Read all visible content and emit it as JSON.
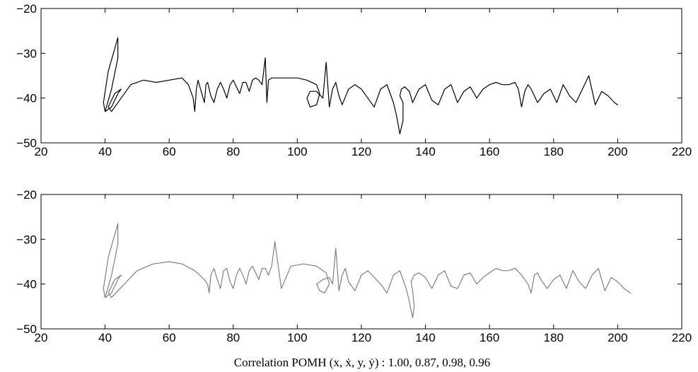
{
  "chart_data": [
    {
      "type": "line",
      "panel": "top",
      "title": "",
      "xlabel": "",
      "ylabel": "",
      "xlim": [
        20,
        220
      ],
      "ylim": [
        -50,
        -20
      ],
      "x_ticks": [
        20,
        40,
        60,
        80,
        100,
        120,
        140,
        160,
        180,
        200,
        220
      ],
      "y_ticks": [
        -50,
        -40,
        -30,
        -20
      ],
      "x_tick_labels": [
        "20",
        "40",
        "60",
        "80",
        "100",
        "120",
        "140",
        "160",
        "180",
        "200",
        "220"
      ],
      "y_tick_labels": [
        "−50",
        "−40",
        "−30",
        "−20"
      ],
      "grid": false,
      "line_color": "#000000",
      "series": [
        {
          "x": [
            40,
            42,
            44,
            44,
            41,
            39.5,
            40,
            42,
            44,
            45,
            43,
            41,
            42,
            45,
            48,
            52,
            56,
            60,
            64,
            66,
            67.5,
            68,
            68.5,
            69,
            70,
            71,
            71.5,
            72,
            73,
            74,
            75,
            76,
            77,
            78,
            79,
            80,
            81,
            82,
            83,
            84,
            85,
            86,
            87,
            88,
            89,
            90,
            90.5,
            91,
            92,
            94,
            97,
            100,
            103,
            106,
            107,
            106,
            104,
            103,
            104,
            106,
            108,
            109,
            110,
            111,
            112,
            113,
            114,
            116,
            118,
            120,
            122,
            124,
            126,
            128,
            130,
            131,
            132,
            133,
            133,
            132,
            132.5,
            133.5,
            135,
            136,
            138,
            140,
            142,
            144,
            146,
            148,
            150,
            152,
            154,
            156,
            158,
            160,
            162,
            164,
            166,
            168,
            169,
            170,
            171,
            172,
            173,
            175,
            177,
            179,
            181,
            183,
            185,
            187,
            189,
            191,
            193,
            195,
            197,
            199,
            200
          ],
          "y": [
            -43,
            -38,
            -31,
            -26.5,
            -34,
            -41,
            -43,
            -42,
            -39,
            -38,
            -39,
            -42,
            -43,
            -40,
            -37,
            -36,
            -36.5,
            -36,
            -35.5,
            -37,
            -40,
            -43,
            -38,
            -36,
            -38.5,
            -41,
            -37,
            -36.5,
            -39.5,
            -41,
            -38,
            -36.5,
            -38,
            -40,
            -37,
            -36,
            -37.5,
            -39,
            -36.5,
            -36.5,
            -38.5,
            -36,
            -35.5,
            -36,
            -37,
            -31,
            -41,
            -36,
            -35.5,
            -35.5,
            -35.5,
            -35.5,
            -36,
            -37,
            -39,
            -41.5,
            -42,
            -40,
            -38.5,
            -38.5,
            -40,
            -32,
            -42,
            -38,
            -36.5,
            -39.5,
            -41.5,
            -38,
            -37,
            -38,
            -40,
            -42,
            -38,
            -37,
            -41,
            -44,
            -48,
            -45,
            -41,
            -39.5,
            -38,
            -37.5,
            -38.5,
            -41,
            -38,
            -37,
            -40.5,
            -41.5,
            -38,
            -37,
            -41,
            -38.5,
            -37.5,
            -40,
            -38,
            -37,
            -36.5,
            -37,
            -37,
            -36.5,
            -38,
            -42,
            -38.5,
            -37,
            -38,
            -41,
            -39,
            -38,
            -41,
            -37,
            -39.5,
            -41,
            -38,
            -35,
            -41.5,
            -38.5,
            -39.5,
            -41,
            -41.5
          ]
        }
      ]
    },
    {
      "type": "line",
      "panel": "bottom",
      "title": "",
      "xlabel": "",
      "ylabel": "",
      "xlim": [
        20,
        220
      ],
      "ylim": [
        -50,
        -20
      ],
      "x_ticks": [
        20,
        40,
        60,
        80,
        100,
        120,
        140,
        160,
        180,
        200,
        220
      ],
      "y_ticks": [
        -50,
        -40,
        -30,
        -20
      ],
      "x_tick_labels": [
        "20",
        "40",
        "60",
        "80",
        "100",
        "120",
        "140",
        "160",
        "180",
        "200",
        "220"
      ],
      "y_tick_labels": [
        "−50",
        "−40",
        "−30",
        "−20"
      ],
      "grid": false,
      "line_color": "#808080",
      "series": [
        {
          "x": [
            40,
            42,
            44,
            44,
            41,
            39.5,
            40,
            42,
            44,
            45,
            43,
            41,
            42,
            46,
            50,
            55,
            60,
            64,
            68,
            71,
            72,
            72.5,
            73,
            74,
            75,
            76,
            77,
            78,
            79,
            80,
            81,
            82,
            83,
            84,
            85,
            86,
            87,
            88,
            89,
            90,
            91,
            92,
            93,
            95,
            98,
            102,
            106,
            109,
            110,
            108.5,
            107,
            106,
            108,
            110,
            111,
            112,
            113,
            114,
            115,
            116,
            118,
            120,
            122,
            124,
            126,
            128,
            130,
            132,
            134,
            135,
            136,
            136.5,
            136,
            135.5,
            136.5,
            138,
            140,
            142,
            144,
            146,
            148,
            150,
            152,
            154,
            156,
            158,
            160,
            162,
            164,
            166,
            168,
            170,
            172,
            173,
            174,
            175,
            176,
            178,
            180,
            182,
            184,
            186,
            188,
            190,
            192,
            194,
            196,
            198,
            200,
            202,
            203,
            204
          ],
          "y": [
            -43,
            -38,
            -31,
            -26.5,
            -34,
            -41,
            -43,
            -42,
            -39,
            -38,
            -39,
            -42,
            -43,
            -40,
            -37,
            -35.5,
            -35,
            -35.5,
            -37,
            -39,
            -40,
            -42,
            -38,
            -36.5,
            -39,
            -41,
            -37,
            -36.5,
            -39.5,
            -41,
            -38,
            -36.5,
            -38,
            -40,
            -37,
            -36,
            -37.5,
            -39,
            -36.5,
            -36.5,
            -38,
            -36,
            -30.5,
            -41,
            -36,
            -35.5,
            -36,
            -37.5,
            -40,
            -42,
            -41.5,
            -40,
            -39,
            -38.5,
            -40,
            -32,
            -41.5,
            -38,
            -36.5,
            -39.5,
            -41.5,
            -38,
            -37,
            -38.5,
            -40,
            -42,
            -38,
            -37,
            -41,
            -44,
            -47.5,
            -45,
            -41.5,
            -39.5,
            -38,
            -37.5,
            -38.5,
            -41,
            -38,
            -37,
            -40.5,
            -41,
            -38,
            -37.5,
            -40,
            -38.5,
            -37.5,
            -36.5,
            -37,
            -37,
            -36.5,
            -38,
            -40,
            -42,
            -38,
            -37.5,
            -39,
            -41,
            -39,
            -38,
            -41,
            -37,
            -39.5,
            -41,
            -38,
            -36.5,
            -41.5,
            -38.5,
            -39.5,
            -41,
            -41.5,
            -42
          ]
        }
      ]
    }
  ],
  "caption": "Correlation POMH (x, ẋ, y, ẏ) : 1.00, 0.87, 0.98, 0.96"
}
